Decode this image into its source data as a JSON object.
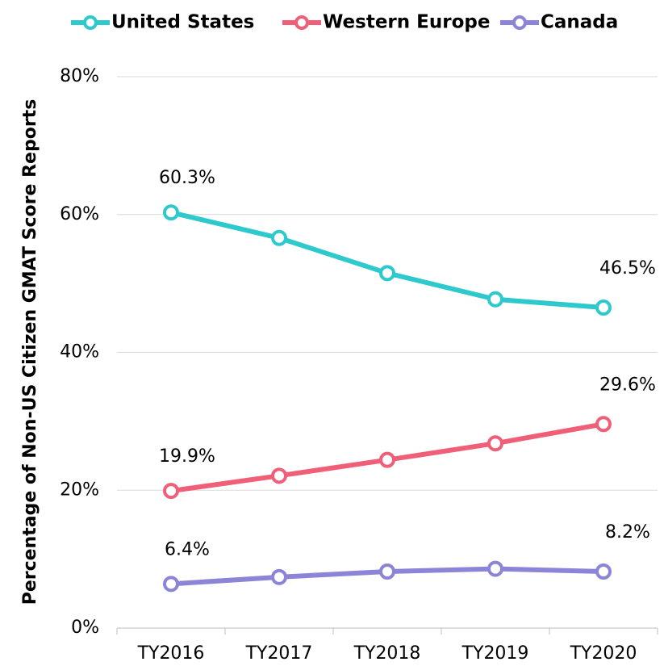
{
  "chart_data": {
    "type": "line",
    "y_label": "Percentage of Non-US Citizen GMAT Score Reports",
    "categories": [
      "TY2016",
      "TY2017",
      "TY2018",
      "TY2019",
      "TY2020"
    ],
    "series": [
      {
        "name": "United States",
        "color": "#2ec9cc",
        "values": [
          60.3,
          56.6,
          51.5,
          47.7,
          46.5
        ],
        "value_labels": [
          "60.3%",
          null,
          null,
          null,
          "46.5%"
        ]
      },
      {
        "name": "Western Europe",
        "color": "#ef6078",
        "values": [
          19.9,
          22.1,
          24.4,
          26.8,
          29.6
        ],
        "value_labels": [
          "19.9%",
          null,
          null,
          null,
          "29.6%"
        ]
      },
      {
        "name": "Canada",
        "color": "#8b84d7",
        "values": [
          6.4,
          7.4,
          8.2,
          8.6,
          8.2
        ],
        "value_labels": [
          "6.4%",
          null,
          null,
          null,
          "8.2%"
        ]
      }
    ],
    "ylim": [
      0,
      80
    ],
    "yticks": [
      {
        "value": 0,
        "label": "0%"
      },
      {
        "value": 20,
        "label": "20%"
      },
      {
        "value": 40,
        "label": "40%"
      },
      {
        "value": 60,
        "label": "60%"
      },
      {
        "value": 80,
        "label": "80%"
      }
    ],
    "grid": true,
    "legend": "top"
  }
}
